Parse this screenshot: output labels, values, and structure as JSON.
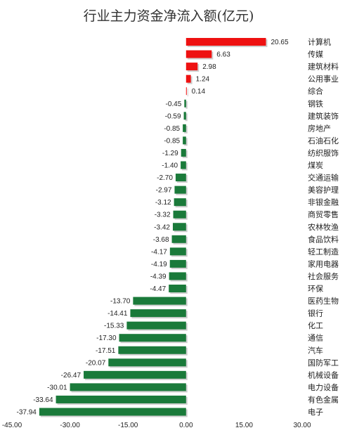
{
  "chart_data": {
    "type": "bar",
    "orientation": "horizontal",
    "title": "行业主力资金净流入额(亿元)",
    "xlabel": "",
    "ylabel": "",
    "xlim": [
      -45,
      30
    ],
    "xticks": [
      "-45.00",
      "-30.00",
      "-15.00",
      "0.00",
      "15.00",
      "30.00"
    ],
    "xtick_values": [
      -45,
      -30,
      -15,
      0,
      15,
      30
    ],
    "grid": false,
    "legend": "none",
    "colors": {
      "positive": "#ee1111",
      "negative": "#1a7a3a"
    },
    "categories": [
      "计算机",
      "传媒",
      "建筑材料",
      "公用事业",
      "综合",
      "钢铁",
      "建筑装饰",
      "房地产",
      "石油石化",
      "纺织服饰",
      "煤炭",
      "交通运输",
      "美容护理",
      "非银金融",
      "商贸零售",
      "农林牧渔",
      "食品饮料",
      "轻工制造",
      "家用电器",
      "社会服务",
      "环保",
      "医药生物",
      "银行",
      "化工",
      "通信",
      "汽车",
      "国防军工",
      "机械设备",
      "电力设备",
      "有色金属",
      "电子"
    ],
    "values": [
      20.65,
      6.63,
      2.98,
      1.24,
      0.14,
      -0.45,
      -0.59,
      -0.85,
      -0.85,
      -1.29,
      -1.4,
      -2.7,
      -2.97,
      -3.12,
      -3.32,
      -3.42,
      -3.68,
      -4.17,
      -4.19,
      -4.39,
      -4.47,
      -13.7,
      -14.41,
      -15.33,
      -17.3,
      -17.51,
      -20.07,
      -26.47,
      -30.01,
      -33.64,
      -37.94
    ],
    "value_labels": [
      "20.65",
      "6.63",
      "2.98",
      "1.24",
      "0.14",
      "-0.45",
      "-0.59",
      "-0.85",
      "-0.85",
      "-1.29",
      "-1.40",
      "-2.70",
      "-2.97",
      "-3.12",
      "-3.32",
      "-3.42",
      "-3.68",
      "-4.17",
      "-4.19",
      "-4.39",
      "-4.47",
      "-13.70",
      "-14.41",
      "-15.33",
      "-17.30",
      "-17.51",
      "-20.07",
      "-26.47",
      "-30.01",
      "-33.64",
      "-37.94"
    ]
  }
}
